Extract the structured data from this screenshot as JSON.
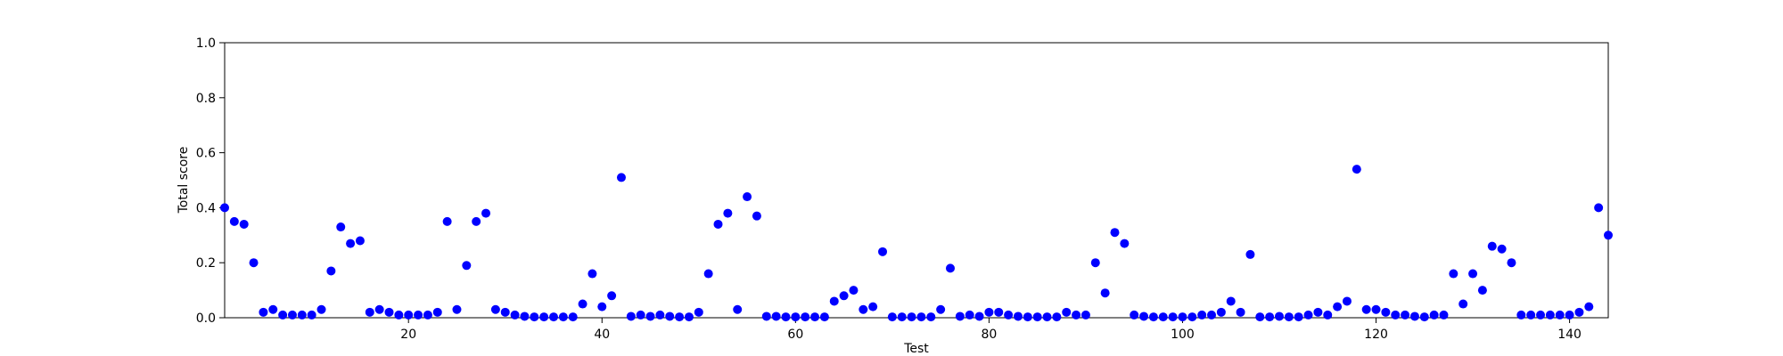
{
  "chart_data": {
    "type": "scatter",
    "title": "",
    "xlabel": "Test",
    "ylabel": "Total score",
    "xlim": [
      1,
      144
    ],
    "ylim": [
      0.0,
      1.0
    ],
    "x_ticks": [
      20,
      40,
      60,
      80,
      100,
      120,
      140
    ],
    "y_ticks": [
      0.0,
      0.2,
      0.4,
      0.6,
      0.8,
      1.0
    ],
    "x_tick_labels": [
      "20",
      "40",
      "60",
      "80",
      "100",
      "120",
      "140"
    ],
    "y_tick_labels": [
      "0.0",
      "0.2",
      "0.4",
      "0.6",
      "0.8",
      "1.0"
    ],
    "grid": false,
    "marker_color": "#0000ff",
    "x": [
      1,
      2,
      3,
      4,
      5,
      6,
      7,
      8,
      9,
      10,
      11,
      12,
      13,
      14,
      15,
      16,
      17,
      18,
      19,
      20,
      21,
      22,
      23,
      24,
      25,
      26,
      27,
      28,
      29,
      30,
      31,
      32,
      33,
      34,
      35,
      36,
      37,
      38,
      39,
      40,
      41,
      42,
      43,
      44,
      45,
      46,
      47,
      48,
      49,
      50,
      51,
      52,
      53,
      54,
      55,
      56,
      57,
      58,
      59,
      60,
      61,
      62,
      63,
      64,
      65,
      66,
      67,
      68,
      69,
      70,
      71,
      72,
      73,
      74,
      75,
      76,
      77,
      78,
      79,
      80,
      81,
      82,
      83,
      84,
      85,
      86,
      87,
      88,
      89,
      90,
      91,
      92,
      93,
      94,
      95,
      96,
      97,
      98,
      99,
      100,
      101,
      102,
      103,
      104,
      105,
      106,
      107,
      108,
      109,
      110,
      111,
      112,
      113,
      114,
      115,
      116,
      117,
      118,
      119,
      120,
      121,
      122,
      123,
      124,
      125,
      126,
      127,
      128,
      129,
      130,
      131,
      132,
      133,
      134,
      135,
      136,
      137,
      138,
      139,
      140,
      141,
      142,
      143,
      144
    ],
    "y": [
      0.4,
      0.35,
      0.34,
      0.2,
      0.02,
      0.03,
      0.01,
      0.01,
      0.01,
      0.01,
      0.03,
      0.17,
      0.33,
      0.27,
      0.28,
      0.02,
      0.03,
      0.02,
      0.01,
      0.01,
      0.01,
      0.01,
      0.02,
      0.35,
      0.03,
      0.19,
      0.35,
      0.38,
      0.03,
      0.02,
      0.01,
      0.005,
      0.003,
      0.003,
      0.003,
      0.003,
      0.003,
      0.05,
      0.16,
      0.04,
      0.08,
      0.51,
      0.005,
      0.01,
      0.005,
      0.01,
      0.005,
      0.003,
      0.003,
      0.02,
      0.16,
      0.34,
      0.38,
      0.03,
      0.44,
      0.37,
      0.005,
      0.005,
      0.003,
      0.003,
      0.003,
      0.003,
      0.003,
      0.06,
      0.08,
      0.1,
      0.03,
      0.04,
      0.24,
      0.003,
      0.003,
      0.003,
      0.003,
      0.003,
      0.03,
      0.18,
      0.005,
      0.01,
      0.005,
      0.02,
      0.02,
      0.01,
      0.005,
      0.003,
      0.003,
      0.003,
      0.003,
      0.02,
      0.01,
      0.01,
      0.2,
      0.09,
      0.31,
      0.27,
      0.01,
      0.005,
      0.003,
      0.003,
      0.003,
      0.003,
      0.003,
      0.01,
      0.01,
      0.02,
      0.06,
      0.02,
      0.23,
      0.003,
      0.003,
      0.005,
      0.003,
      0.003,
      0.01,
      0.02,
      0.01,
      0.04,
      0.06,
      0.54,
      0.03,
      0.03,
      0.02,
      0.01,
      0.01,
      0.005,
      0.003,
      0.01,
      0.01,
      0.16,
      0.05,
      0.16,
      0.1,
      0.26,
      0.25,
      0.2,
      0.01,
      0.01,
      0.01,
      0.01,
      0.01,
      0.01,
      0.02,
      0.04,
      0.4,
      0.3
    ]
  }
}
